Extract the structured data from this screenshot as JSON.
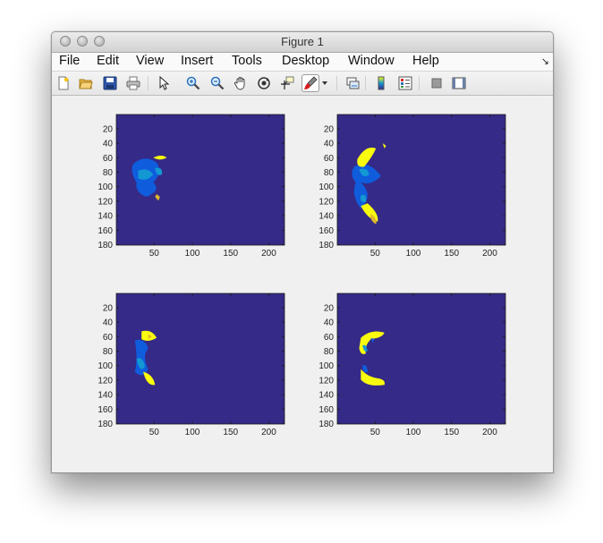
{
  "window": {
    "title": "Figure 1"
  },
  "menu": {
    "items": [
      "File",
      "Edit",
      "View",
      "Insert",
      "Tools",
      "Desktop",
      "Window",
      "Help"
    ],
    "overflow_icon": "menu-collapse-arrow-icon"
  },
  "toolbar": {
    "buttons": [
      "new-figure-icon",
      "open-file-icon",
      "save-icon",
      "print-icon",
      "edit-plot-pointer-icon",
      "zoom-in-icon",
      "zoom-out-icon",
      "pan-hand-icon",
      "rotate-3d-icon",
      "data-cursor-icon",
      "brush-icon",
      "brush-dropdown-icon",
      "link-plot-icon",
      "insert-colorbar-icon",
      "insert-legend-icon",
      "hide-plot-tools-icon",
      "show-plot-tools-icon"
    ]
  },
  "colors": {
    "background": "#352a87",
    "blue": "#0f5cdd",
    "cyan": "#1398d4",
    "yellow": "#f9fb0e",
    "orange": "#e0b52d"
  },
  "chart_data": [
    {
      "type": "heatmap",
      "title": "",
      "xlabel": "",
      "ylabel": "",
      "xticks": [
        50,
        100,
        150,
        200
      ],
      "yticks": [
        20,
        40,
        60,
        80,
        100,
        120,
        140,
        160,
        180
      ],
      "xlim": [
        0.5,
        220.5
      ],
      "ylim": [
        0.5,
        180.5
      ],
      "colormap": "parula"
    },
    {
      "type": "heatmap",
      "title": "",
      "xlabel": "",
      "ylabel": "",
      "xticks": [
        50,
        100,
        150,
        200
      ],
      "yticks": [
        20,
        40,
        60,
        80,
        100,
        120,
        140,
        160,
        180
      ],
      "xlim": [
        0.5,
        220.5
      ],
      "ylim": [
        0.5,
        180.5
      ],
      "colormap": "parula"
    },
    {
      "type": "heatmap",
      "title": "",
      "xlabel": "",
      "ylabel": "",
      "xticks": [
        50,
        100,
        150,
        200
      ],
      "yticks": [
        20,
        40,
        60,
        80,
        100,
        120,
        140,
        160,
        180
      ],
      "xlim": [
        0.5,
        220.5
      ],
      "ylim": [
        0.5,
        180.5
      ],
      "colormap": "parula"
    },
    {
      "type": "heatmap",
      "title": "",
      "xlabel": "",
      "ylabel": "",
      "xticks": [
        50,
        100,
        150,
        200
      ],
      "yticks": [
        20,
        40,
        60,
        80,
        100,
        120,
        140,
        160,
        180
      ],
      "xlim": [
        0.5,
        220.5
      ],
      "ylim": [
        0.5,
        180.5
      ],
      "colormap": "parula"
    }
  ]
}
